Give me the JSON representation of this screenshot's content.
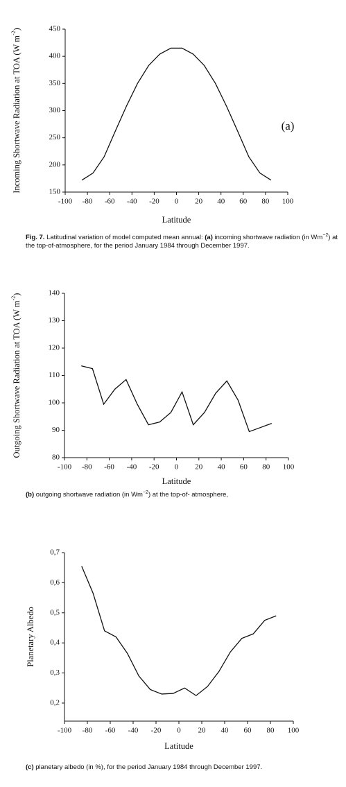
{
  "chart_data": [
    {
      "type": "line",
      "xlabel": "Latitude",
      "ylabel": [
        {
          "text": "Incoming Shortwave Radiation at TOA (W m",
          "sup": false
        },
        {
          "text": "-2",
          "sup": true
        },
        {
          "text": ")",
          "sup": false
        }
      ],
      "annotation": "(a)",
      "x": [
        -85,
        -75,
        -65,
        -55,
        -45,
        -35,
        -25,
        -15,
        -5,
        5,
        15,
        25,
        35,
        45,
        55,
        65,
        75,
        85
      ],
      "values": [
        172,
        185,
        215,
        262,
        308,
        350,
        383,
        404,
        415,
        415,
        404,
        383,
        350,
        308,
        262,
        215,
        185,
        172
      ],
      "color": "#111111",
      "xlim": [
        -100,
        100
      ],
      "xticks": [
        -100,
        -80,
        -60,
        -40,
        -20,
        0,
        20,
        40,
        60,
        80,
        100
      ],
      "ylim": [
        150,
        450
      ],
      "yticks": [
        150,
        200,
        250,
        300,
        350,
        400,
        450
      ],
      "caption": [
        {
          "text": "Fig. 7.",
          "bold": true,
          "sup": false
        },
        {
          "text": " Latitudinal variation of model computed mean annual: ",
          "bold": false,
          "sup": false
        },
        {
          "text": "(a)",
          "bold": true,
          "sup": false
        },
        {
          "text": " incoming shortwave radiation (in Wm",
          "bold": false,
          "sup": false
        },
        {
          "text": "−2",
          "bold": false,
          "sup": true
        },
        {
          "text": ") at the top-of-atmosphere, for the period January 1984 through December 1997.",
          "bold": false,
          "sup": false
        }
      ]
    },
    {
      "type": "line",
      "xlabel": "Latitude",
      "ylabel": [
        {
          "text": "Outgoing Shortwave Radiation at TOA (W m",
          "sup": false
        },
        {
          "text": "-2",
          "sup": true
        },
        {
          "text": ")",
          "sup": false
        }
      ],
      "x": [
        -85,
        -75,
        -65,
        -55,
        -45,
        -35,
        -25,
        -15,
        -5,
        5,
        15,
        25,
        35,
        45,
        55,
        65,
        75,
        85
      ],
      "values": [
        113.5,
        112.5,
        99.5,
        105,
        108.5,
        99.5,
        92,
        93,
        96.5,
        104,
        92,
        96.5,
        103.5,
        108,
        101,
        89.5,
        91,
        92.5
      ],
      "color": "#111111",
      "xlim": [
        -100,
        100
      ],
      "xticks": [
        -100,
        -80,
        -60,
        -40,
        -20,
        0,
        20,
        40,
        60,
        80,
        100
      ],
      "ylim": [
        80,
        140
      ],
      "yticks": [
        80,
        90,
        100,
        110,
        120,
        130,
        140
      ],
      "caption": [
        {
          "text": "(b)",
          "bold": true,
          "sup": false
        },
        {
          "text": " outgoing shortwave radiation (in Wm",
          "bold": false,
          "sup": false
        },
        {
          "text": "−2",
          "bold": false,
          "sup": true
        },
        {
          "text": ") at the top-of- atmosphere,",
          "bold": false,
          "sup": false
        }
      ]
    },
    {
      "type": "line",
      "xlabel": "Latitude",
      "ylabel": [
        {
          "text": "Planetary Albedo",
          "sup": false
        }
      ],
      "x": [
        -85,
        -75,
        -65,
        -55,
        -45,
        -35,
        -25,
        -15,
        -5,
        5,
        15,
        25,
        35,
        45,
        55,
        65,
        75,
        85
      ],
      "values": [
        0.655,
        0.565,
        0.44,
        0.42,
        0.365,
        0.29,
        0.245,
        0.23,
        0.232,
        0.25,
        0.225,
        0.255,
        0.305,
        0.37,
        0.415,
        0.43,
        0.475,
        0.49
      ],
      "color": "#111111",
      "xlim": [
        -100,
        100
      ],
      "xticks": [
        -100,
        -80,
        -60,
        -40,
        -20,
        0,
        20,
        40,
        60,
        80,
        100
      ],
      "ylim": [
        0.14,
        0.7
      ],
      "yticks": [
        {
          "value": 0.2,
          "label": "0,2"
        },
        {
          "value": 0.3,
          "label": "0,3"
        },
        {
          "value": 0.4,
          "label": "0,4"
        },
        {
          "value": 0.5,
          "label": "0,5"
        },
        {
          "value": 0.6,
          "label": "0,6"
        },
        {
          "value": 0.7,
          "label": "0,7"
        }
      ],
      "caption": [
        {
          "text": "(c)",
          "bold": true,
          "sup": false
        },
        {
          "text": " planetary albedo (in %), for the period January 1984 through December 1997.",
          "bold": false,
          "sup": false
        }
      ]
    }
  ]
}
